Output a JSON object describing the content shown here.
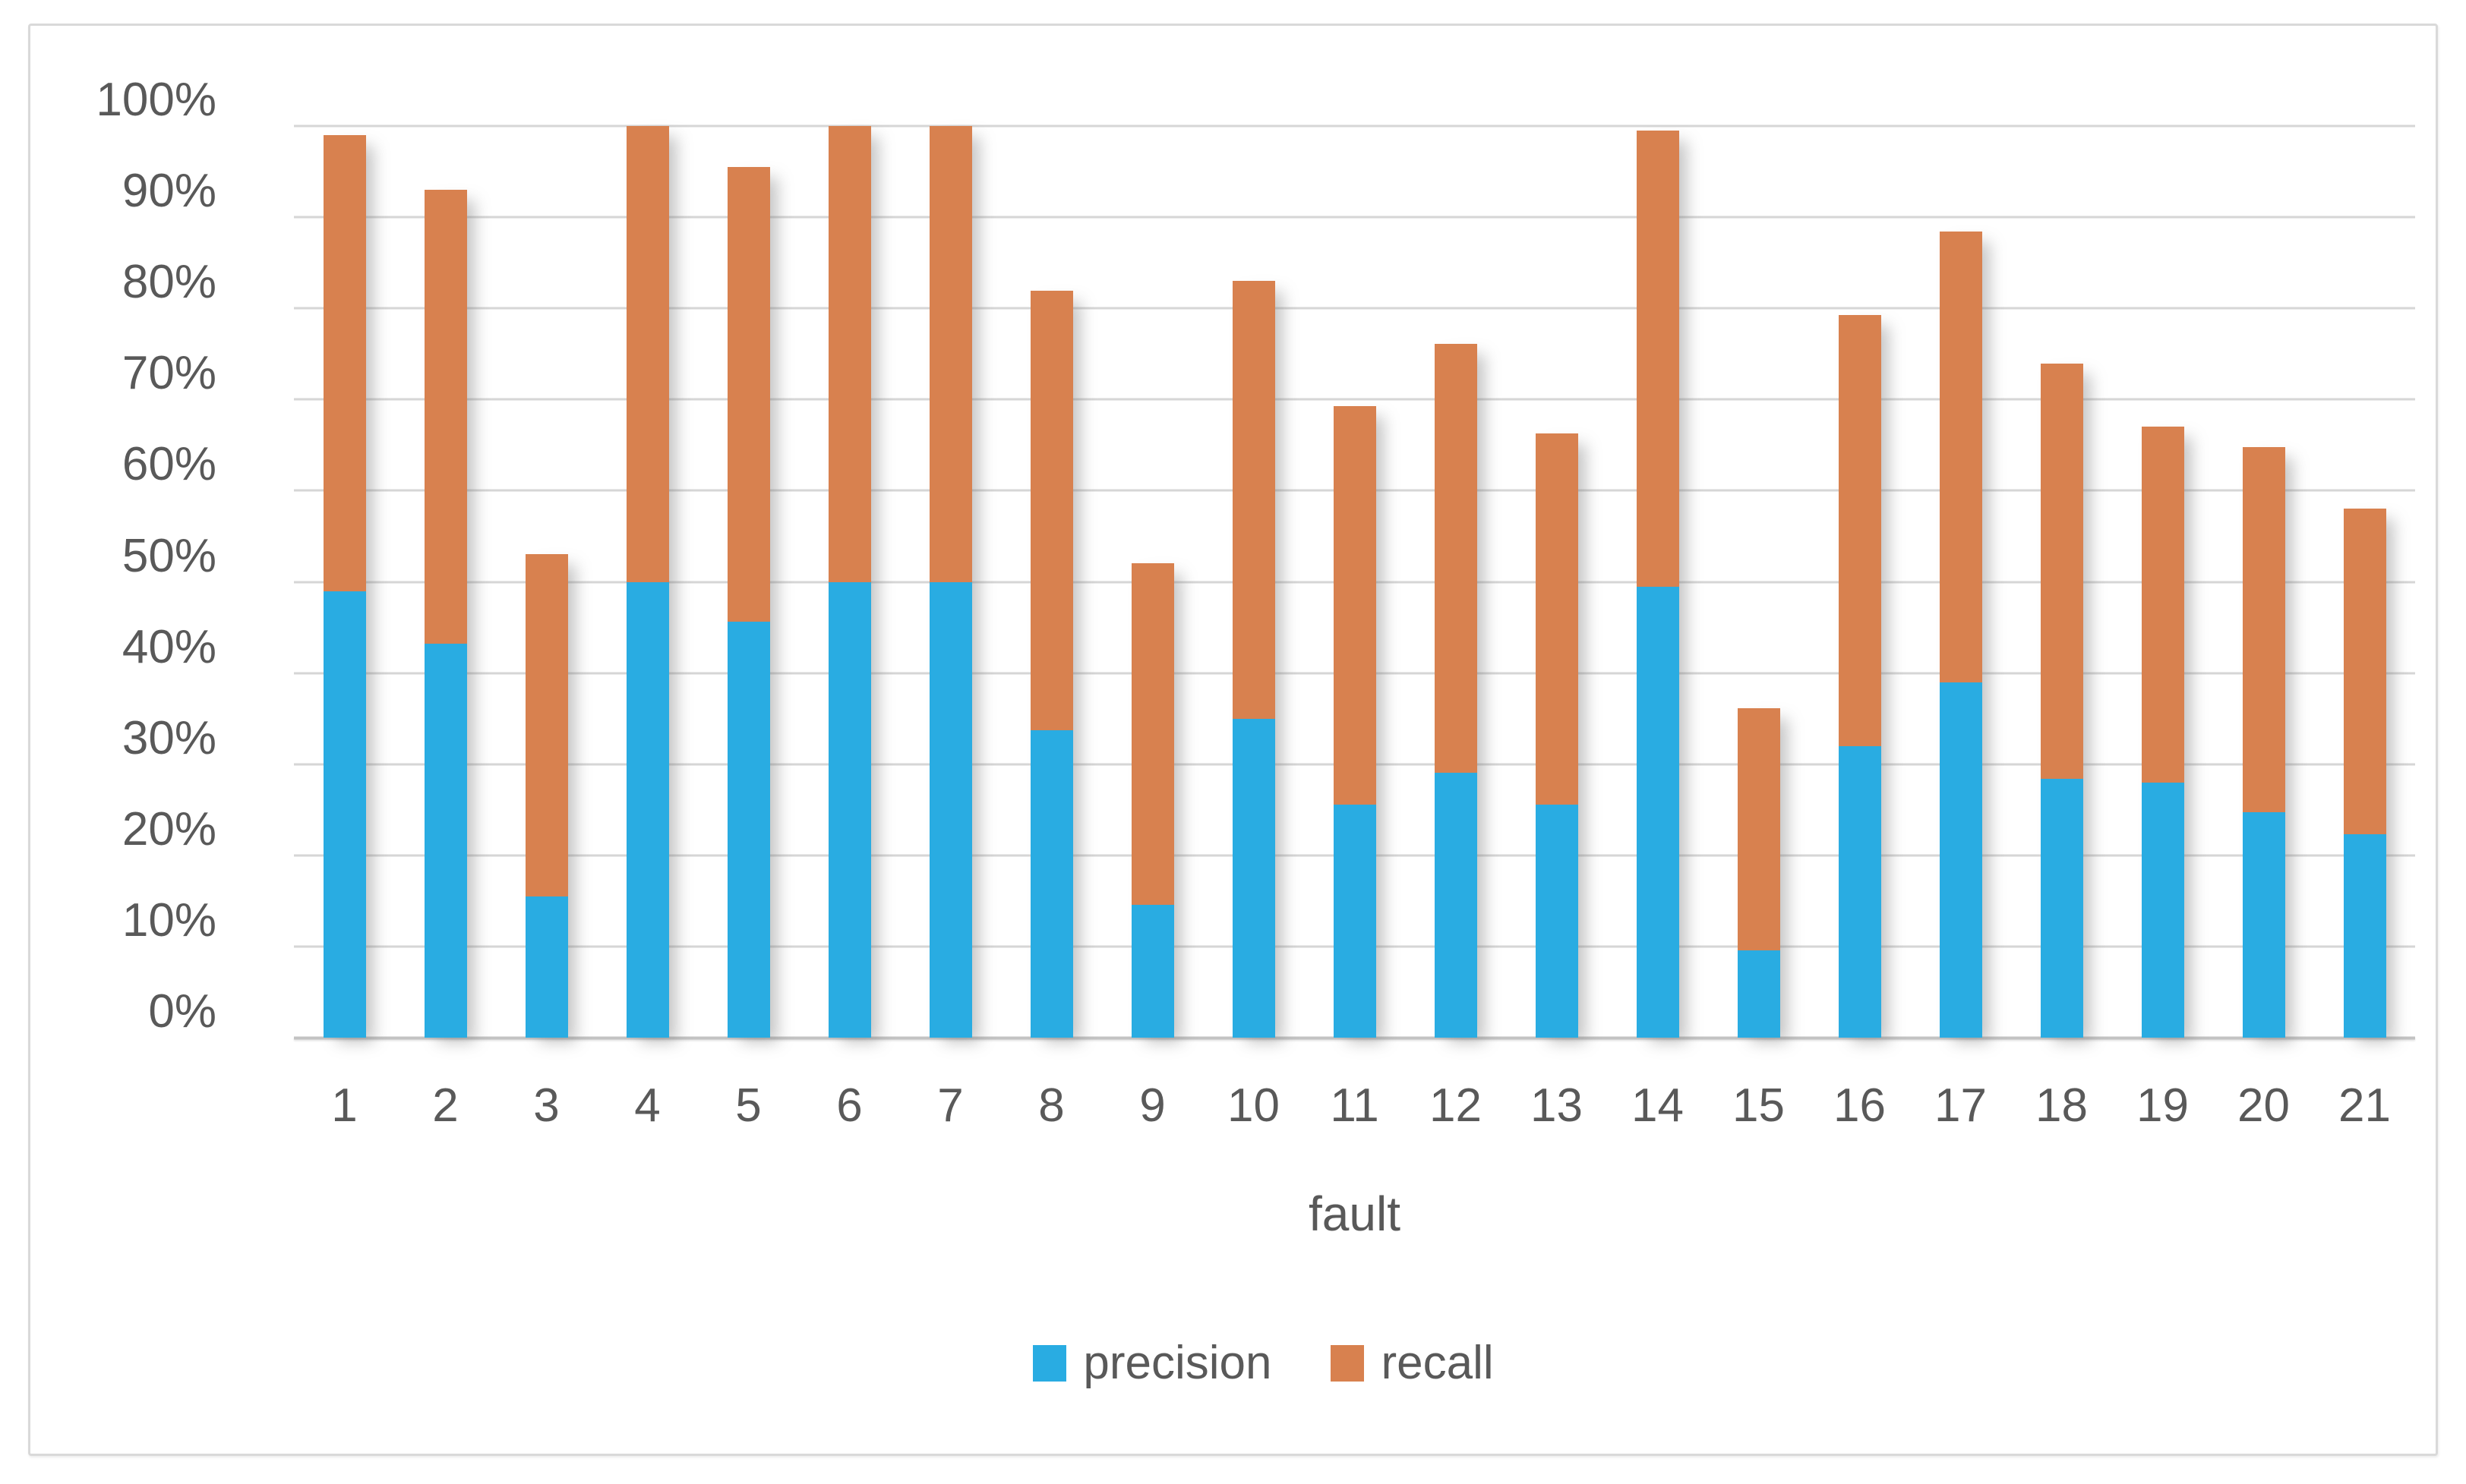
{
  "chart_data": {
    "type": "bar",
    "stacked": true,
    "orientation": "vertical",
    "title": "",
    "xlabel": "fault",
    "ylabel": "",
    "categories": [
      "1",
      "2",
      "3",
      "4",
      "5",
      "6",
      "7",
      "8",
      "9",
      "10",
      "11",
      "12",
      "13",
      "14",
      "15",
      "16",
      "17",
      "18",
      "19",
      "20",
      "21"
    ],
    "series": [
      {
        "name": "precision",
        "color": "#29ACE2",
        "values": [
          49,
          43.2,
          15.5,
          50,
          45.6,
          50,
          50,
          33.7,
          14.6,
          35,
          25.6,
          29.1,
          25.6,
          49.5,
          9.6,
          32,
          39,
          28.4,
          28,
          24.7,
          22.3
        ]
      },
      {
        "name": "recall",
        "color": "#D8814F",
        "values": [
          50,
          49.8,
          37.5,
          50,
          49.9,
          50,
          50,
          48.2,
          37.4,
          48,
          43.7,
          47,
          40.7,
          50,
          26.5,
          47.3,
          49.4,
          45.5,
          39,
          40.1,
          35.7
        ]
      }
    ],
    "stack_totals_pct": [
      99,
      93,
      53,
      100,
      95.5,
      100,
      100,
      81.9,
      52,
      83,
      69.3,
      76.1,
      66.3,
      99.5,
      36.1,
      79.3,
      88.4,
      73.9,
      67,
      64.8,
      58
    ],
    "y_ticks": [
      "100%",
      "90%",
      "80%",
      "70%",
      "60%",
      "50%",
      "40%",
      "30%",
      "20%",
      "10%",
      "0%"
    ],
    "ylim": [
      0,
      100
    ],
    "grid": true,
    "legend_position": "bottom"
  },
  "legend": {
    "items": [
      {
        "label": "precision",
        "color": "#29ACE2"
      },
      {
        "label": "recall",
        "color": "#D8814F"
      }
    ]
  },
  "colors": {
    "precision": "#29ACE2",
    "recall": "#D8814F",
    "text": "#595959",
    "gridline": "#d6d6d6",
    "axis_line": "#c3c3c3",
    "border": "#d9d9d9",
    "background": "#ffffff"
  }
}
